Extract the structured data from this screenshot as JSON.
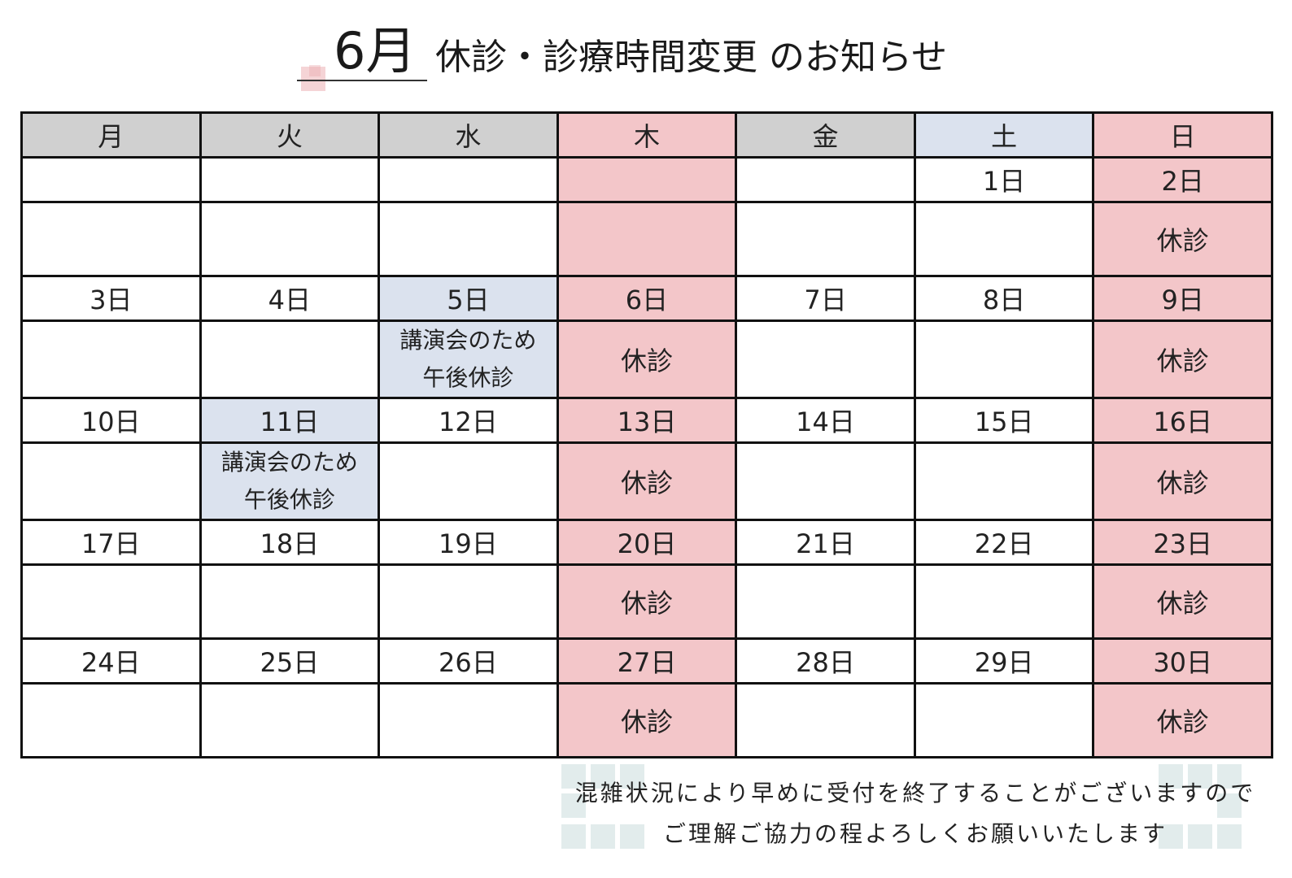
{
  "title": {
    "month": "6月",
    "text": "休診・診療時間変更 のお知らせ"
  },
  "weekdays": [
    "月",
    "火",
    "水",
    "木",
    "金",
    "土",
    "日"
  ],
  "weeks": [
    {
      "dates": [
        "",
        "",
        "",
        "",
        "",
        "1日",
        "2日"
      ],
      "notes": [
        "",
        "",
        "",
        "",
        "",
        "",
        "休診"
      ]
    },
    {
      "dates": [
        "3日",
        "4日",
        "5日",
        "6日",
        "7日",
        "8日",
        "9日"
      ],
      "notes": [
        "",
        "",
        "講演会のため\n午後休診",
        "休診",
        "",
        "",
        "休診"
      ]
    },
    {
      "dates": [
        "10日",
        "11日",
        "12日",
        "13日",
        "14日",
        "15日",
        "16日"
      ],
      "notes": [
        "",
        "講演会のため\n午後休診",
        "",
        "休診",
        "",
        "",
        "休診"
      ]
    },
    {
      "dates": [
        "17日",
        "18日",
        "19日",
        "20日",
        "21日",
        "22日",
        "23日"
      ],
      "notes": [
        "",
        "",
        "",
        "休診",
        "",
        "",
        "休診"
      ]
    },
    {
      "dates": [
        "24日",
        "25日",
        "26日",
        "27日",
        "28日",
        "29日",
        "30日"
      ],
      "notes": [
        "",
        "",
        "",
        "休診",
        "",
        "",
        "休診"
      ]
    }
  ],
  "footer": {
    "line1": "混雑状況により早めに受付を終了することがございますので",
    "line2": "ご理解ご協力の程よろしくお願いいたします"
  },
  "colors": {
    "header_gray": "#d0d0d0",
    "closed_pink": "#f3c6c9",
    "afternoon_off_blue": "#dbe2ee",
    "saturday_blue": "#dbe2ee"
  }
}
